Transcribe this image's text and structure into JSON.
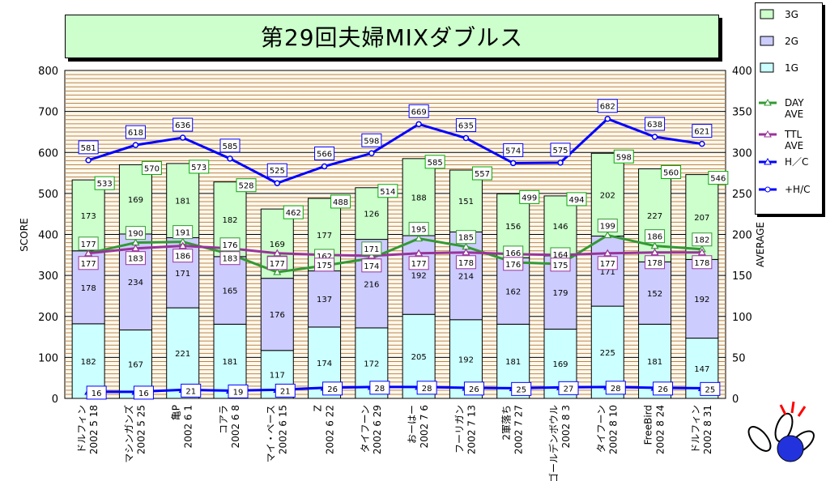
{
  "title": "第29回夫婦MIXダブルス",
  "chart_data": {
    "type": "bar",
    "title": "第29回夫婦MIXダブルス",
    "ylabel_left": "SCORE",
    "ylabel_right": "AVERAGE",
    "ylim_left": [
      0,
      800
    ],
    "ylim_right": [
      0,
      400
    ],
    "left_ticks": [
      "0",
      "100",
      "200",
      "300",
      "400",
      "500",
      "600",
      "700",
      "800"
    ],
    "right_ticks": [
      "0",
      "50",
      "100",
      "150",
      "200",
      "250",
      "300",
      "350",
      "400"
    ],
    "grid": true,
    "legend_position": "top-right",
    "categories": [
      {
        "name": "ドルフィン",
        "date": "2002 5 18"
      },
      {
        "name": "マシンガンズ",
        "date": "2002 5 25"
      },
      {
        "name": "亀P",
        "date": "2002 6 1"
      },
      {
        "name": "コアラ",
        "date": "2002 6 8"
      },
      {
        "name": "マイ・ペース",
        "date": "2002 6 15"
      },
      {
        "name": "Z",
        "date": "2002 6 22"
      },
      {
        "name": "タイフーン",
        "date": "2002 6 29"
      },
      {
        "name": "おーはー",
        "date": "2002 7 6"
      },
      {
        "name": "フーリガン",
        "date": "2002 7 13"
      },
      {
        "name": "2軍落ち",
        "date": "2002 7 27"
      },
      {
        "name": "ゴールデンボウル",
        "date": "2002 8 3"
      },
      {
        "name": "タイフーン",
        "date": "2002 8 10"
      },
      {
        "name": "FreeBird",
        "date": "2002 8 24"
      },
      {
        "name": "ドルフィン",
        "date": "2002 8 31"
      }
    ],
    "series": [
      {
        "name": "1G",
        "kind": "bar",
        "axis": "left",
        "color": "#ccffff",
        "values": [
          182,
          167,
          221,
          181,
          117,
          174,
          172,
          205,
          192,
          181,
          169,
          225,
          181,
          147
        ]
      },
      {
        "name": "2G",
        "kind": "bar",
        "axis": "left",
        "color": "#ccccff",
        "values": [
          178,
          234,
          171,
          165,
          176,
          137,
          216,
          192,
          214,
          162,
          179,
          171,
          152,
          192
        ]
      },
      {
        "name": "3G",
        "kind": "bar",
        "axis": "left",
        "color": "#ccffcc",
        "values": [
          173,
          169,
          181,
          182,
          169,
          177,
          126,
          188,
          151,
          156,
          146,
          202,
          227,
          207
        ]
      },
      {
        "name": "DAY AVE",
        "kind": "line",
        "axis": "right",
        "color": "#339933",
        "marker": "triangle",
        "values": [
          177,
          190,
          191,
          176,
          154,
          162,
          171,
          195,
          185,
          166,
          164,
          199,
          186,
          182
        ]
      },
      {
        "name": "TTL AVE",
        "kind": "line",
        "axis": "right",
        "color": "#993399",
        "marker": "triangle",
        "values": [
          177,
          183,
          186,
          183,
          177,
          175,
          174,
          177,
          178,
          176,
          175,
          177,
          178,
          178
        ]
      },
      {
        "name": "H/C",
        "kind": "line",
        "axis": "left",
        "color": "#0000ff",
        "marker": "triangle",
        "values": [
          16,
          16,
          21,
          19,
          21,
          26,
          28,
          28,
          26,
          25,
          27,
          28,
          26,
          25
        ]
      },
      {
        "name": "+H/C",
        "kind": "line",
        "axis": "left",
        "color": "#0000ff",
        "marker": "circle",
        "values": [
          581,
          618,
          636,
          585,
          525,
          566,
          598,
          669,
          635,
          574,
          575,
          682,
          638,
          621
        ]
      }
    ],
    "totals": [
      533,
      570,
      573,
      528,
      462,
      488,
      514,
      585,
      557,
      499,
      494,
      598,
      560,
      546
    ],
    "legend_labels": [
      "3G",
      "2G",
      "1G",
      "DAY\nAVE",
      "TTL\nAVE",
      "H／C",
      "+H/C"
    ]
  }
}
